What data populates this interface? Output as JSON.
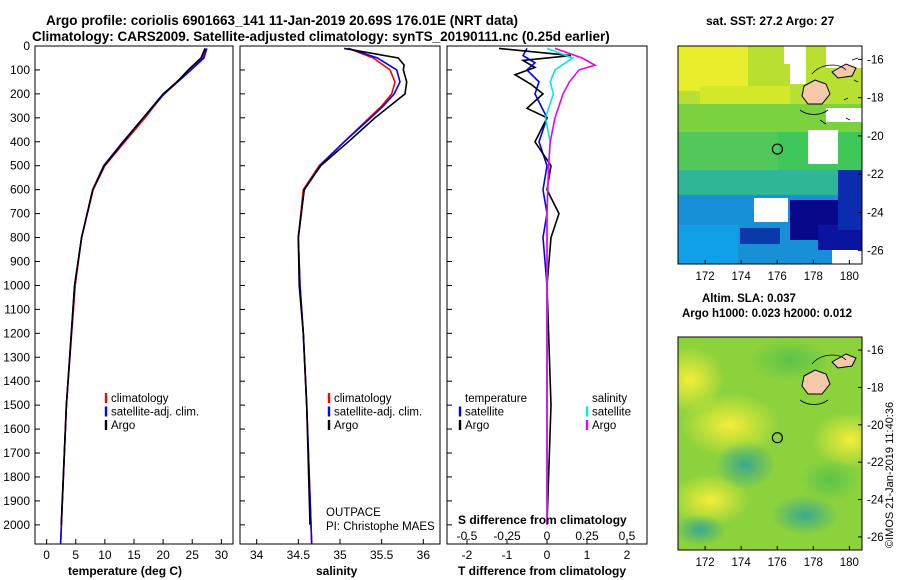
{
  "header": {
    "line1": "Argo profile: coriolis 6901663_141 11-Jan-2019 20.69S 176.01E (NRT data)",
    "line2": "Climatology: CARS2009. Satellite-adjusted climatology: synTS_20190111.nc (0.25d earlier)"
  },
  "credit": "©IMOS 21-Jan-2019 11:40:36",
  "chart_data": [
    {
      "name": "temperature-profile",
      "type": "line",
      "xlabel": "temperature (deg C)",
      "ylabel": "",
      "xlim": [
        -2,
        32
      ],
      "ylim": [
        2080,
        0
      ],
      "xticks": [
        0,
        5,
        10,
        15,
        20,
        25,
        30
      ],
      "yticks": [
        0,
        100,
        200,
        300,
        400,
        500,
        600,
        700,
        800,
        900,
        1000,
        1100,
        1200,
        1300,
        1400,
        1500,
        1600,
        1700,
        1800,
        1900,
        2000
      ],
      "legend": [
        "climatology",
        "satellite-adj. clim.",
        "Argo"
      ],
      "series": [
        {
          "name": "climatology",
          "color": "#ff0000",
          "pressure": [
            10,
            50,
            100,
            150,
            200,
            300,
            400,
            500,
            600,
            800,
            1000,
            1500,
            2080
          ],
          "values": [
            27.3,
            26.8,
            24.5,
            22.3,
            20.1,
            16.9,
            13.4,
            10.0,
            8.0,
            6.0,
            4.9,
            3.4,
            2.4
          ]
        },
        {
          "name": "satellite-adj. clim.",
          "color": "#0000ff",
          "pressure": [
            10,
            50,
            100,
            150,
            200,
            300,
            400,
            500,
            600,
            800,
            1000,
            1500,
            2080
          ],
          "values": [
            27.5,
            27.0,
            24.8,
            22.5,
            20.2,
            16.6,
            13.1,
            9.8,
            7.9,
            6.0,
            4.8,
            3.4,
            2.4
          ]
        },
        {
          "name": "Argo",
          "color": "#000000",
          "pressure": [
            10,
            50,
            100,
            150,
            200,
            300,
            400,
            500,
            600,
            800,
            1000,
            1500,
            2000
          ],
          "values": [
            27.2,
            26.5,
            24.3,
            22.4,
            20.0,
            16.6,
            13.2,
            9.9,
            7.9,
            6.0,
            4.8,
            3.4,
            2.5
          ]
        }
      ]
    },
    {
      "name": "salinity-profile",
      "type": "line",
      "xlabel": "salinity",
      "xlim": [
        33.8,
        36.2
      ],
      "ylim": [
        2080,
        0
      ],
      "xticks": [
        34,
        34.5,
        35,
        35.5,
        36
      ],
      "legend": [
        "climatology",
        "satellite-adj. clim.",
        "Argo"
      ],
      "annotation": [
        "OUTPACE",
        "PI: Christophe MAES"
      ],
      "series": [
        {
          "name": "climatology",
          "color": "#ff0000",
          "pressure": [
            10,
            50,
            100,
            150,
            200,
            250,
            300,
            400,
            500,
            600,
            800,
            1000,
            1200,
            1500,
            2080
          ],
          "values": [
            35.1,
            35.4,
            35.6,
            35.66,
            35.62,
            35.5,
            35.35,
            35.05,
            34.75,
            34.56,
            34.5,
            34.52,
            34.56,
            34.6,
            34.66
          ]
        },
        {
          "name": "satellite-adj. clim.",
          "color": "#0000ff",
          "pressure": [
            10,
            50,
            100,
            150,
            200,
            250,
            300,
            400,
            500,
            600,
            800,
            1000,
            1200,
            1500,
            2080
          ],
          "values": [
            35.1,
            35.45,
            35.68,
            35.72,
            35.65,
            35.52,
            35.37,
            35.05,
            34.76,
            34.57,
            34.5,
            34.52,
            34.56,
            34.6,
            34.66
          ]
        },
        {
          "name": "Argo",
          "color": "#000000",
          "pressure": [
            10,
            50,
            80,
            100,
            150,
            200,
            250,
            300,
            400,
            500,
            600,
            800,
            1000,
            1200,
            1500,
            2000
          ],
          "values": [
            35.05,
            35.7,
            35.77,
            35.76,
            35.8,
            35.78,
            35.6,
            35.42,
            35.1,
            34.77,
            34.57,
            34.5,
            34.51,
            34.56,
            34.6,
            34.64
          ]
        }
      ]
    },
    {
      "name": "difference-profile",
      "type": "line",
      "xlabel": "T difference from climatology",
      "xlabel2": "S difference from climatology",
      "xlim": [
        -2.5,
        2.5
      ],
      "ylim": [
        2080,
        0
      ],
      "xticks": [
        -2,
        -1,
        0,
        1,
        2
      ],
      "xticks2": [
        -0.5,
        -0.25,
        0,
        0.25,
        0.5
      ],
      "legend_temperature": [
        "temperature",
        "satellite",
        "Argo"
      ],
      "legend_salinity": [
        "salinity",
        "satellite",
        "Argo"
      ],
      "series": [
        {
          "name": "T satellite",
          "color": "#0000ff",
          "pressure": [
            10,
            40,
            70,
            100,
            150,
            200,
            300,
            400,
            500,
            600,
            700,
            800,
            1000,
            1500,
            1900
          ],
          "values": [
            -0.5,
            -0.6,
            -0.3,
            -0.5,
            -0.2,
            -0.3,
            0.0,
            -0.2,
            0.0,
            -0.1,
            0.0,
            -0.1,
            0.0,
            0.0,
            0.0
          ]
        },
        {
          "name": "T Argo",
          "color": "#000000",
          "pressure": [
            10,
            40,
            60,
            90,
            120,
            160,
            200,
            260,
            300,
            400,
            500,
            600,
            700,
            800,
            1000,
            1500,
            2000
          ],
          "values": [
            -1.2,
            0.6,
            -0.6,
            -0.3,
            -0.8,
            -0.4,
            -0.1,
            -0.5,
            0.0,
            -0.3,
            0.1,
            0.0,
            0.3,
            0.1,
            0.0,
            0.1,
            0.0
          ]
        },
        {
          "name": "S satellite",
          "color": "#00e8e8",
          "pressure": [
            10,
            50,
            100,
            150,
            200,
            300,
            400,
            500,
            700,
            1000,
            1500,
            2000
          ],
          "values": [
            0.0,
            0.16,
            0.05,
            0.02,
            0.04,
            -0.01,
            0.02,
            0.01,
            0.0,
            0.0,
            0.0,
            0.0
          ]
        },
        {
          "name": "S Argo",
          "color": "#ee00ee",
          "pressure": [
            10,
            50,
            80,
            100,
            150,
            200,
            300,
            400,
            500,
            700,
            1000,
            1500,
            2000
          ],
          "values": [
            0.05,
            0.22,
            0.3,
            0.2,
            0.14,
            0.1,
            0.05,
            0.02,
            0.01,
            0.0,
            0.0,
            0.0,
            0.0
          ]
        }
      ]
    },
    {
      "name": "sst-map",
      "type": "heatmap",
      "title": "sat. SST: 27.2 Argo: 27",
      "xticks": [
        172,
        174,
        176,
        178,
        180
      ],
      "yticks": [
        -16,
        -18,
        -20,
        -22,
        -24,
        -26
      ],
      "xlim": [
        170.5,
        180.7
      ],
      "ylim": [
        -26.7,
        -15.3
      ],
      "marker": {
        "lon": 176.01,
        "lat": -20.69
      }
    },
    {
      "name": "sla-map",
      "type": "heatmap",
      "title": "Altim. SLA: 0.037",
      "subtitle": "Argo h1000: 0.023 h2000: 0.012",
      "xticks": [
        172,
        174,
        176,
        178,
        180
      ],
      "yticks": [
        -16,
        -18,
        -20,
        -22,
        -24,
        -26
      ],
      "xlim": [
        170.5,
        180.7
      ],
      "ylim": [
        -26.7,
        -15.3
      ],
      "marker": {
        "lon": 176.01,
        "lat": -20.69
      }
    }
  ]
}
